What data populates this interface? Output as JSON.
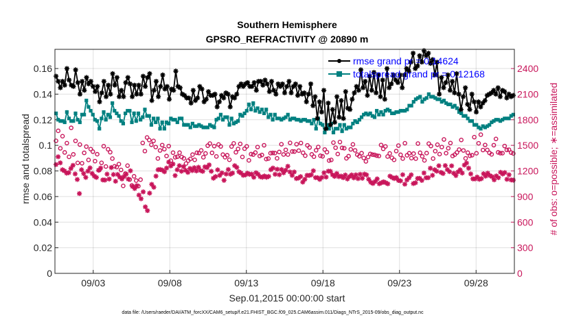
{
  "chart_data": {
    "type": "line",
    "title": "Southern Hemisphere",
    "subtitle": "GPSRO_REFRACTIVITY @ 20890 m",
    "xlabel": "Sep.01,2015 00:00:00 start",
    "ylabel_left": "rmse and totalspread",
    "ylabel_right": "# of obs: o=possible; ∗=assimilated",
    "footnote": "data file: /Users/raeder/DAI/ATM_forcXX/CAM6_setup/f.e21.FHIST_BGC.f09_025.CAM6assim.011/Diags_NTrS_2015-09/obs_diag_output.nc",
    "xlim": [
      0.5,
      30.5
    ],
    "x_ticks": [
      {
        "x": 3,
        "label": "09/03"
      },
      {
        "x": 8,
        "label": "09/08"
      },
      {
        "x": 13,
        "label": "09/13"
      },
      {
        "x": 18,
        "label": "09/18"
      },
      {
        "x": 23,
        "label": "09/23"
      },
      {
        "x": 28,
        "label": "09/28"
      }
    ],
    "y_left": {
      "lim": [
        0,
        0.175
      ],
      "ticks": [
        0,
        0.02,
        0.04,
        0.06,
        0.08,
        0.1,
        0.12,
        0.14,
        0.16
      ],
      "tick_labels": [
        "0",
        "0.02",
        "0.04",
        "0.06",
        "0.08",
        "0.1",
        "0.12",
        "0.14",
        "0.16"
      ]
    },
    "y_right": {
      "lim": [
        0,
        2625
      ],
      "ticks": [
        0,
        300,
        600,
        900,
        1200,
        1500,
        1800,
        2100,
        2400
      ],
      "tick_labels": [
        "0",
        "300",
        "600",
        "900",
        "1200",
        "1500",
        "1800",
        "2100",
        "2400"
      ]
    },
    "grid": true,
    "legend_position": "top-right",
    "series": [
      {
        "name": "rmse grand pr = 0.14624",
        "axis": "left",
        "color": "#000000",
        "marker": "asterisk",
        "values": [
          0.154,
          0.15,
          0.145,
          0.15,
          0.147,
          0.16,
          0.151,
          0.147,
          0.146,
          0.159,
          0.149,
          0.14,
          0.15,
          0.143,
          0.153,
          0.148,
          0.15,
          0.146,
          0.142,
          0.146,
          0.134,
          0.141,
          0.15,
          0.138,
          0.147,
          0.14,
          0.156,
          0.147,
          0.153,
          0.138,
          0.143,
          0.138,
          0.149,
          0.153,
          0.148,
          0.138,
          0.147,
          0.14,
          0.147,
          0.14,
          0.154,
          0.146,
          0.153,
          0.156,
          0.135,
          0.143,
          0.15,
          0.138,
          0.146,
          0.155,
          0.144,
          0.146,
          0.136,
          0.144,
          0.143,
          0.158,
          0.146,
          0.145,
          0.14,
          0.139,
          0.137,
          0.137,
          0.133,
          0.143,
          0.135,
          0.137,
          0.146,
          0.144,
          0.134,
          0.136,
          0.142,
          0.139,
          0.139,
          0.14,
          0.13,
          0.134,
          0.139,
          0.137,
          0.141,
          0.14,
          0.13,
          0.138,
          0.137,
          0.14,
          0.146,
          0.148,
          0.146,
          0.148,
          0.149,
          0.146,
          0.146,
          0.149,
          0.143,
          0.15,
          0.15,
          0.147,
          0.151,
          0.148,
          0.142,
          0.15,
          0.143,
          0.14,
          0.148,
          0.146,
          0.148,
          0.141,
          0.146,
          0.15,
          0.141,
          0.146,
          0.148,
          0.139,
          0.146,
          0.14,
          0.141,
          0.134,
          0.14,
          0.148,
          0.131,
          0.138,
          0.121,
          0.134,
          0.126,
          0.143,
          0.113,
          0.133,
          0.116,
          0.128,
          0.118,
          0.138,
          0.122,
          0.135,
          0.121,
          0.142,
          0.129,
          0.128,
          0.136,
          0.141,
          0.146,
          0.143,
          0.159,
          0.145,
          0.15,
          0.139,
          0.154,
          0.143,
          0.157,
          0.141,
          0.155,
          0.138,
          0.151,
          0.136,
          0.16,
          0.145,
          0.148,
          0.155,
          0.151,
          0.149,
          0.155,
          0.145,
          0.155,
          0.16,
          0.158,
          0.165,
          0.172,
          0.16,
          0.162,
          0.17,
          0.165,
          0.174,
          0.17,
          0.172,
          0.164,
          0.167,
          0.155,
          0.165,
          0.14,
          0.153,
          0.145,
          0.149,
          0.155,
          0.143,
          0.15,
          0.141,
          0.156,
          0.14,
          0.128,
          0.138,
          0.145,
          0.132,
          0.128,
          0.14,
          0.134,
          0.126,
          0.134,
          0.13,
          0.133,
          0.135,
          0.139,
          0.14,
          0.141,
          0.143,
          0.14,
          0.145,
          0.138,
          0.143,
          0.142,
          0.137,
          0.14,
          0.138,
          0.139
        ]
      },
      {
        "name": "totalspread grand pr = 0.12168",
        "axis": "left",
        "color": "#008080",
        "marker": "square",
        "values": [
          0.125,
          0.12,
          0.119,
          0.119,
          0.118,
          0.126,
          0.121,
          0.119,
          0.119,
          0.125,
          0.12,
          0.118,
          0.124,
          0.124,
          0.135,
          0.13,
          0.127,
          0.124,
          0.12,
          0.119,
          0.113,
          0.121,
          0.126,
          0.12,
          0.124,
          0.122,
          0.133,
          0.127,
          0.125,
          0.123,
          0.119,
          0.117,
          0.125,
          0.127,
          0.127,
          0.118,
          0.125,
          0.119,
          0.125,
          0.12,
          0.122,
          0.128,
          0.123,
          0.123,
          0.116,
          0.121,
          0.118,
          0.121,
          0.113,
          0.118,
          0.113,
          0.118,
          0.117,
          0.121,
          0.12,
          0.12,
          0.118,
          0.121,
          0.121,
          0.116,
          0.116,
          0.116,
          0.114,
          0.117,
          0.115,
          0.115,
          0.116,
          0.115,
          0.114,
          0.114,
          0.114,
          0.116,
          0.115,
          0.114,
          0.12,
          0.121,
          0.124,
          0.12,
          0.122,
          0.122,
          0.116,
          0.121,
          0.117,
          0.118,
          0.119,
          0.124,
          0.123,
          0.125,
          0.127,
          0.132,
          0.128,
          0.133,
          0.127,
          0.129,
          0.126,
          0.128,
          0.125,
          0.128,
          0.122,
          0.124,
          0.12,
          0.124,
          0.121,
          0.121,
          0.12,
          0.121,
          0.122,
          0.124,
          0.12,
          0.121,
          0.121,
          0.12,
          0.12,
          0.119,
          0.12,
          0.12,
          0.119,
          0.119,
          0.117,
          0.12,
          0.113,
          0.121,
          0.117,
          0.116,
          0.11,
          0.116,
          0.113,
          0.117,
          0.11,
          0.113,
          0.113,
          0.116,
          0.111,
          0.116,
          0.113,
          0.114,
          0.114,
          0.117,
          0.119,
          0.118,
          0.12,
          0.122,
          0.124,
          0.125,
          0.124,
          0.125,
          0.123,
          0.122,
          0.127,
          0.124,
          0.126,
          0.124,
          0.127,
          0.128,
          0.127,
          0.125,
          0.125,
          0.126,
          0.126,
          0.127,
          0.127,
          0.127,
          0.128,
          0.131,
          0.131,
          0.134,
          0.136,
          0.137,
          0.138,
          0.134,
          0.136,
          0.137,
          0.14,
          0.138,
          0.138,
          0.137,
          0.136,
          0.136,
          0.134,
          0.135,
          0.133,
          0.132,
          0.132,
          0.13,
          0.131,
          0.129,
          0.126,
          0.125,
          0.123,
          0.123,
          0.121,
          0.119,
          0.119,
          0.116,
          0.116,
          0.114,
          0.113,
          0.115,
          0.114,
          0.115,
          0.116,
          0.118,
          0.119,
          0.12,
          0.12,
          0.119,
          0.12,
          0.121,
          0.121,
          0.121,
          0.123,
          0.124
        ]
      },
      {
        "name": "possible",
        "axis": "right",
        "color": "#c8155a",
        "marker": "circle",
        "values": [
          1553,
          1670,
          1465,
          1607,
          1417,
          1526,
          1365,
          1705,
          1394,
          1552,
          1294,
          1509,
          1290,
          1412,
          1485,
          1329,
          1456,
          1426,
          1315,
          1396,
          1210,
          1295,
          1490,
          1252,
          1454,
          1420,
          1345,
          1255,
          1245,
          1280,
          1212,
          1025,
          1169,
          1262,
          1099,
          1030,
          1137,
          1087,
          1022,
          1098,
          1528,
          1433,
          1592,
          1562,
          1507,
          1552,
          1480,
          1346,
          1440,
          1503,
          1455,
          1375,
          1491,
          1320,
          1414,
          1360,
          1366,
          1414,
          1363,
          1347,
          1287,
          1321,
          1341,
          1391,
          1330,
          1413,
          1410,
          1441,
          1360,
          1405,
          1496,
          1521,
          1412,
          1491,
          1370,
          1510,
          1487,
          1391,
          1361,
          1384,
          1331,
          1486,
          1523,
          1419,
          1458,
          1517,
          1364,
          1461,
          1488,
          1324,
          1397,
          1391,
          1415,
          1480,
          1375,
          1387,
          1501,
          1339,
          1345,
          1408,
          1411,
          1409,
          1348,
          1422,
          1513,
          1393,
          1447,
          1392,
          1529,
          1428,
          1427,
          1513,
          1438,
          1527,
          1413,
          1379,
          1500,
          1475,
          1394,
          1367,
          1442,
          1481,
          1378,
          1371,
          1451,
          1420,
          1322,
          1329,
          1532,
          1472,
          1398,
          1539,
          1470,
          1466,
          1348,
          1373,
          1453,
          1511,
          1441,
          1391,
          1372,
          1408,
          1352,
          1312,
          1363,
          1399,
          1391,
          1388,
          1379,
          1375,
          1504,
          1459,
          1487,
          1369,
          1405,
          1354,
          1330,
          1433,
          1497,
          1389,
          1345,
          1525,
          1383,
          1407,
          1350,
          1403,
          1344,
          1521,
          1413,
          1371,
          1324,
          1409,
          1520,
          1492,
          1345,
          1432,
          1508,
          1397,
          1480,
          1569,
          1408,
          1466,
          1527,
          1375,
          1391,
          1416,
          1450,
          1563,
          1440,
          1347,
          1414,
          1377,
          1384,
          1596,
          1407,
          1524,
          1625,
          1445,
          1504,
          1446,
          1412,
          1394,
          1502,
          1575,
          1418,
          1408,
          1408,
          1492,
          1446,
          1449,
          1415,
          1405
        ]
      },
      {
        "name": "assimilated",
        "axis": "right",
        "color": "#c8155a",
        "marker": "asterisk",
        "values": [
          1275,
          1366,
          1295,
          1214,
          1200,
          1174,
          1180,
          1230,
          1266,
          1165,
          1100,
          935,
          1214,
          1169,
          1124,
          1198,
          1236,
          1170,
          1140,
          1124,
          1208,
          1234,
          1095,
          1093,
          1163,
          1105,
          1240,
          1158,
          1079,
          1159,
          1127,
          1106,
          1134,
          1162,
          1104,
          1202,
          1018,
          994,
          1028,
          917,
          874,
          955,
          779,
          735,
          940,
          1043,
          1009,
          1139,
          1214,
          1217,
          1209,
          1190,
          1234,
          1304,
          1259,
          1281,
          1146,
          1214,
          1262,
          1196,
          1250,
          1206,
          1183,
          1229,
          1204,
          1238,
          1200,
          1243,
          1205,
          1195,
          1248,
          1239,
          1271,
          1196,
          1115,
          1134,
          1213,
          1148,
          1177,
          1090,
          1164,
          1217,
          1162,
          1175,
          1262,
          1242,
          1190,
          1175,
          1149,
          1154,
          1174,
          1160,
          1163,
          1126,
          1179,
          1162,
          1133,
          1126,
          1141,
          1126,
          1136,
          1215,
          1234,
          1161,
          1220,
          1156,
          1217,
          1178,
          1209,
          1255,
          1188,
          1148,
          1188,
          1111,
          1117,
          1134,
          1069,
          1102,
          1149,
          1147,
          1155,
          1202,
          1122,
          1121,
          1101,
          1124,
          1178,
          1128,
          1197,
          1196,
          1155,
          1136,
          1170,
          1133,
          1140,
          1121,
          1153,
          1106,
          1134,
          1154,
          1119,
          1155,
          1110,
          1161,
          1114,
          1163,
          1154,
          1102,
          1067,
          1053,
          1075,
          1107,
          1050,
          1061,
          1073,
          1062,
          1049,
          1139,
          1124,
          1111,
          1123,
          1089,
          1084,
          1156,
          1045,
          1095,
          1120,
          1155,
          1052,
          1061,
          1112,
          1113,
          1089,
          1176,
          1120,
          1121,
          1232,
          1149,
          1214,
          1197,
          1261,
          1183,
          1170,
          1263,
          1215,
          1192,
          1260,
          1173,
          1146,
          1189,
          1213,
          1175,
          1269,
          1293,
          1233,
          1165,
          1107,
          1107,
          1129,
          1102,
          1110,
          1167,
          1139,
          1174,
          1146,
          1133,
          1096,
          1142,
          1121,
          1184,
          1164,
          1181,
          1102,
          1155,
          1095,
          1092
        ]
      }
    ]
  }
}
